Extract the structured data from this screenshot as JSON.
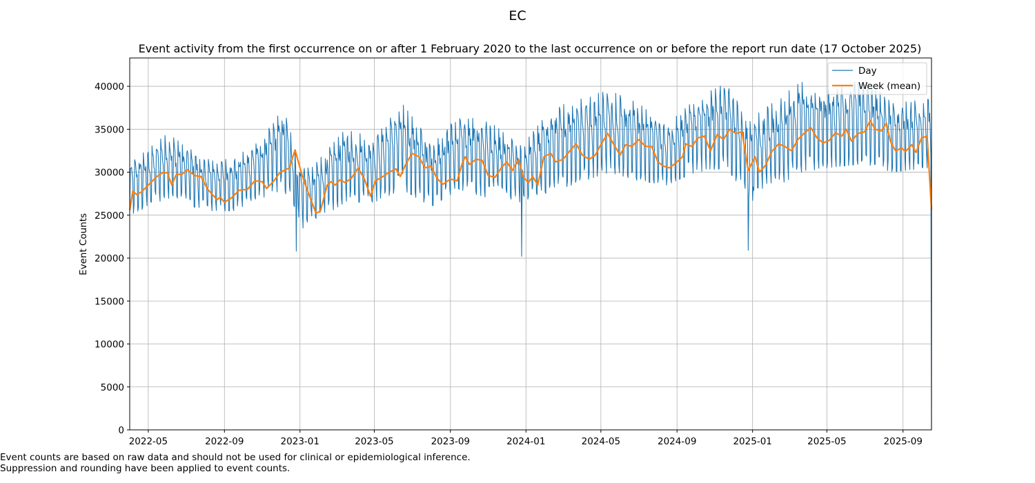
{
  "figure_title": "EC",
  "footnotes": [
    "Event counts are based on raw data and should not be used for clinical or epidemiological inference.",
    "Suppression and rounding have been applied to event counts."
  ],
  "colors": {
    "day": "#1f77b4",
    "week": "#ff7f0e",
    "grid": "#b0b0b0"
  },
  "chart_data": {
    "type": "line",
    "title": "Event activity from the first occurrence on or after 1 February 2020 to the last occurrence on or before the report run date (17 October 2025)",
    "xlabel": "",
    "ylabel": "Event Counts",
    "x_range": [
      "2022-04-01",
      "2025-10-17"
    ],
    "ylim": [
      0,
      43300
    ],
    "grid": true,
    "legend_position": "top-right",
    "x_ticks": [
      "2022-05",
      "2022-09",
      "2023-01",
      "2023-05",
      "2023-09",
      "2024-01",
      "2024-05",
      "2024-09",
      "2025-01",
      "2025-05",
      "2025-09"
    ],
    "y_ticks": [
      0,
      5000,
      10000,
      15000,
      20000,
      25000,
      30000,
      35000,
      40000
    ],
    "series": [
      {
        "name": "Day",
        "style": "daily series with strong weekly oscillation between lower and upper envelope",
        "upper_envelope": [
          [
            "2022-04-01",
            31000
          ],
          [
            "2022-06-01",
            34500
          ],
          [
            "2022-08-01",
            31500
          ],
          [
            "2022-09-15",
            31500
          ],
          [
            "2022-11-01",
            34000
          ],
          [
            "2022-12-05",
            37500
          ],
          [
            "2023-01-01",
            31000
          ],
          [
            "2023-01-20",
            30500
          ],
          [
            "2023-03-15",
            35000
          ],
          [
            "2023-05-01",
            34000
          ],
          [
            "2023-06-15",
            38000
          ],
          [
            "2023-08-01",
            33500
          ],
          [
            "2023-09-15",
            36500
          ],
          [
            "2023-11-01",
            36000
          ],
          [
            "2023-12-25",
            33000
          ],
          [
            "2024-02-01",
            36500
          ],
          [
            "2024-03-15",
            38500
          ],
          [
            "2024-05-15",
            39500
          ],
          [
            "2024-07-01",
            38000
          ],
          [
            "2024-08-15",
            35500
          ],
          [
            "2024-10-01",
            38500
          ],
          [
            "2024-11-20",
            40500
          ],
          [
            "2024-12-25",
            36000
          ],
          [
            "2025-02-01",
            38000
          ],
          [
            "2025-03-20",
            40500
          ],
          [
            "2025-05-01",
            39500
          ],
          [
            "2025-07-01",
            41000
          ],
          [
            "2025-08-15",
            38000
          ],
          [
            "2025-10-10",
            38500
          ]
        ],
        "lower_envelope": [
          [
            "2022-04-01",
            25000
          ],
          [
            "2022-06-01",
            27000
          ],
          [
            "2022-08-01",
            25500
          ],
          [
            "2022-09-15",
            25500
          ],
          [
            "2022-11-01",
            27000
          ],
          [
            "2022-12-05",
            28000
          ],
          [
            "2023-01-01",
            24500
          ],
          [
            "2023-01-20",
            24000
          ],
          [
            "2023-03-15",
            26500
          ],
          [
            "2023-05-01",
            26500
          ],
          [
            "2023-06-15",
            28000
          ],
          [
            "2023-08-01",
            26000
          ],
          [
            "2023-09-15",
            28000
          ],
          [
            "2023-11-01",
            27000
          ],
          [
            "2023-12-25",
            26500
          ],
          [
            "2024-02-01",
            27500
          ],
          [
            "2024-03-15",
            28500
          ],
          [
            "2024-05-15",
            30000
          ],
          [
            "2024-07-01",
            29000
          ],
          [
            "2024-08-15",
            28500
          ],
          [
            "2024-10-01",
            30000
          ],
          [
            "2024-11-20",
            30500
          ],
          [
            "2024-12-25",
            27000
          ],
          [
            "2025-02-01",
            28000
          ],
          [
            "2025-03-20",
            30000
          ],
          [
            "2025-05-01",
            30500
          ],
          [
            "2025-07-01",
            31000
          ],
          [
            "2025-08-15",
            30000
          ],
          [
            "2025-10-10",
            30500
          ]
        ],
        "dips": [
          [
            "2022-12-26",
            20800
          ],
          [
            "2023-01-06",
            23500
          ],
          [
            "2023-12-25",
            20200
          ],
          [
            "2024-12-25",
            20900
          ],
          [
            "2025-01-01",
            26700
          ],
          [
            "2025-10-17",
            0
          ]
        ]
      },
      {
        "name": "Week (mean)",
        "points": [
          [
            "2022-04-01",
            25600
          ],
          [
            "2022-04-06",
            27800
          ],
          [
            "2022-04-12",
            27400
          ],
          [
            "2022-04-20",
            27700
          ],
          [
            "2022-05-01",
            28500
          ],
          [
            "2022-05-15",
            29500
          ],
          [
            "2022-05-25",
            30000
          ],
          [
            "2022-06-01",
            29900
          ],
          [
            "2022-06-08",
            28500
          ],
          [
            "2022-06-15",
            29700
          ],
          [
            "2022-06-25",
            29800
          ],
          [
            "2022-07-03",
            30300
          ],
          [
            "2022-07-15",
            29600
          ],
          [
            "2022-07-25",
            29500
          ],
          [
            "2022-08-05",
            28000
          ],
          [
            "2022-08-20",
            26800
          ],
          [
            "2022-08-25",
            27100
          ],
          [
            "2022-09-01",
            26500
          ],
          [
            "2022-09-12",
            27000
          ],
          [
            "2022-09-25",
            27900
          ],
          [
            "2022-10-08",
            28000
          ],
          [
            "2022-10-20",
            29000
          ],
          [
            "2022-11-01",
            28900
          ],
          [
            "2022-11-08",
            28100
          ],
          [
            "2022-11-20",
            29000
          ],
          [
            "2022-11-30",
            30000
          ],
          [
            "2022-12-15",
            30500
          ],
          [
            "2022-12-24",
            32600
          ],
          [
            "2023-01-05",
            29500
          ],
          [
            "2023-01-15",
            27500
          ],
          [
            "2023-01-27",
            25200
          ],
          [
            "2023-02-03",
            25500
          ],
          [
            "2023-02-14",
            28500
          ],
          [
            "2023-02-20",
            28900
          ],
          [
            "2023-02-27",
            28500
          ],
          [
            "2023-03-06",
            29100
          ],
          [
            "2023-03-15",
            28800
          ],
          [
            "2023-03-25",
            29300
          ],
          [
            "2023-04-05",
            30500
          ],
          [
            "2023-04-15",
            29200
          ],
          [
            "2023-04-25",
            27200
          ],
          [
            "2023-05-03",
            29000
          ],
          [
            "2023-05-15",
            29500
          ],
          [
            "2023-05-25",
            30000
          ],
          [
            "2023-06-05",
            30400
          ],
          [
            "2023-06-12",
            29500
          ],
          [
            "2023-06-20",
            30800
          ],
          [
            "2023-07-01",
            32200
          ],
          [
            "2023-07-12",
            31800
          ],
          [
            "2023-07-22",
            30500
          ],
          [
            "2023-08-01",
            30700
          ],
          [
            "2023-08-10",
            29300
          ],
          [
            "2023-08-20",
            28600
          ],
          [
            "2023-09-01",
            29200
          ],
          [
            "2023-09-12",
            29000
          ],
          [
            "2023-09-20",
            31000
          ],
          [
            "2023-09-25",
            31800
          ],
          [
            "2023-10-02",
            30900
          ],
          [
            "2023-10-12",
            31500
          ],
          [
            "2023-10-22",
            31400
          ],
          [
            "2023-11-01",
            29600
          ],
          [
            "2023-11-12",
            29400
          ],
          [
            "2023-11-22",
            30500
          ],
          [
            "2023-12-01",
            31200
          ],
          [
            "2023-12-10",
            30200
          ],
          [
            "2023-12-20",
            31500
          ],
          [
            "2023-12-28",
            29400
          ],
          [
            "2024-01-05",
            28800
          ],
          [
            "2024-01-12",
            29500
          ],
          [
            "2024-01-20",
            28500
          ],
          [
            "2024-01-30",
            31800
          ],
          [
            "2024-02-10",
            32200
          ],
          [
            "2024-02-18",
            31200
          ],
          [
            "2024-03-01",
            31500
          ],
          [
            "2024-03-12",
            32500
          ],
          [
            "2024-03-22",
            33300
          ],
          [
            "2024-04-01",
            32000
          ],
          [
            "2024-04-12",
            31500
          ],
          [
            "2024-04-22",
            32000
          ],
          [
            "2024-05-01",
            33200
          ],
          [
            "2024-05-12",
            34500
          ],
          [
            "2024-05-22",
            33200
          ],
          [
            "2024-06-01",
            32000
          ],
          [
            "2024-06-10",
            33200
          ],
          [
            "2024-06-20",
            33000
          ],
          [
            "2024-07-01",
            33800
          ],
          [
            "2024-07-12",
            33000
          ],
          [
            "2024-07-22",
            33000
          ],
          [
            "2024-08-01",
            31200
          ],
          [
            "2024-08-10",
            30700
          ],
          [
            "2024-08-20",
            30500
          ],
          [
            "2024-09-01",
            31200
          ],
          [
            "2024-09-10",
            31800
          ],
          [
            "2024-09-15",
            33300
          ],
          [
            "2024-09-25",
            33000
          ],
          [
            "2024-10-05",
            34000
          ],
          [
            "2024-10-15",
            34200
          ],
          [
            "2024-10-25",
            32500
          ],
          [
            "2024-11-05",
            34400
          ],
          [
            "2024-11-15",
            33800
          ],
          [
            "2024-11-25",
            35000
          ],
          [
            "2024-12-05",
            34500
          ],
          [
            "2024-12-15",
            34700
          ],
          [
            "2024-12-25",
            30200
          ],
          [
            "2025-01-05",
            31800
          ],
          [
            "2025-01-12",
            30000
          ],
          [
            "2025-01-22",
            30800
          ],
          [
            "2025-02-01",
            32400
          ],
          [
            "2025-02-12",
            33300
          ],
          [
            "2025-02-22",
            33000
          ],
          [
            "2025-03-05",
            32500
          ],
          [
            "2025-03-15",
            33800
          ],
          [
            "2025-03-25",
            34500
          ],
          [
            "2025-04-05",
            35200
          ],
          [
            "2025-04-15",
            34000
          ],
          [
            "2025-04-25",
            33400
          ],
          [
            "2025-05-05",
            33700
          ],
          [
            "2025-05-15",
            34600
          ],
          [
            "2025-05-25",
            34200
          ],
          [
            "2025-06-01",
            35000
          ],
          [
            "2025-06-10",
            33600
          ],
          [
            "2025-06-20",
            34500
          ],
          [
            "2025-07-01",
            34700
          ],
          [
            "2025-07-10",
            36000
          ],
          [
            "2025-07-18",
            35000
          ],
          [
            "2025-07-28",
            34800
          ],
          [
            "2025-08-05",
            35700
          ],
          [
            "2025-08-12",
            33500
          ],
          [
            "2025-08-20",
            32500
          ],
          [
            "2025-08-30",
            32800
          ],
          [
            "2025-09-05",
            32400
          ],
          [
            "2025-09-15",
            33200
          ],
          [
            "2025-09-22",
            32300
          ],
          [
            "2025-10-01",
            34000
          ],
          [
            "2025-10-10",
            34200
          ],
          [
            "2025-10-17",
            25600
          ]
        ]
      }
    ]
  }
}
